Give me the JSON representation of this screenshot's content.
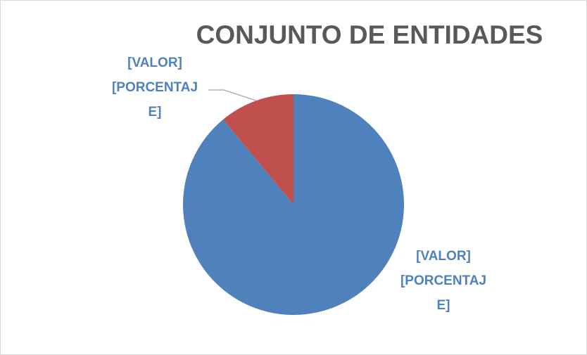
{
  "chart_data": {
    "type": "pie",
    "title": "CONJUNTO DE ENTIDADES",
    "categories": [
      null,
      null
    ],
    "values": [
      89,
      11
    ],
    "value_labels": [
      "[VALOR] [PORCENTAJE]",
      "[VALOR] [PORCENTAJE]"
    ],
    "colors": [
      "#4f81bd",
      "#c0504d"
    ]
  }
}
